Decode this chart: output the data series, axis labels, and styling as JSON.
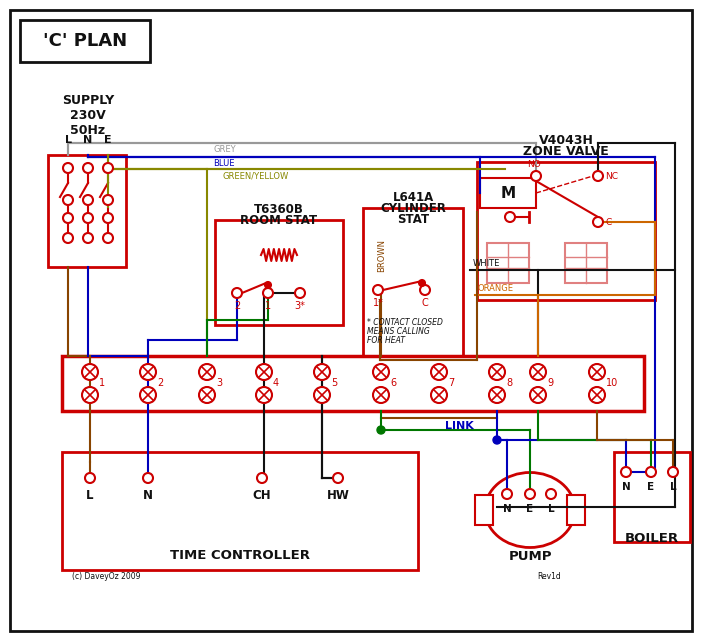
{
  "title": "'C' PLAN",
  "bg": "#ffffff",
  "RED": "#cc0000",
  "PRED": "#e08080",
  "BLUE": "#0000bb",
  "GREEN": "#007700",
  "GREY": "#999999",
  "BROWN": "#884400",
  "ORANGE": "#cc6600",
  "BLACK": "#111111",
  "GY": "#888800",
  "zone_valve": [
    "V4043H",
    "ZONE VALVE"
  ],
  "room_stat": [
    "T6360B",
    "ROOM STAT"
  ],
  "cyl_stat": [
    "L641A",
    "CYLINDER",
    "STAT"
  ],
  "terminals": [
    "1",
    "2",
    "3",
    "4",
    "5",
    "6",
    "7",
    "8",
    "9",
    "10"
  ],
  "tc_labels": [
    "L",
    "N",
    "CH",
    "HW"
  ],
  "tc_title": "TIME CONTROLLER",
  "pump_labels": [
    "N",
    "E",
    "L"
  ],
  "pump_title": "PUMP",
  "boiler_labels": [
    "N",
    "E",
    "L"
  ],
  "boiler_title": "BOILER",
  "link_label": "LINK",
  "wire_labels": {
    "grey": "GREY",
    "blue": "BLUE",
    "gy": "GREEN/YELLOW",
    "brown": "BROWN",
    "white": "WHITE",
    "orange": "ORANGE"
  },
  "contact_note": [
    "* CONTACT CLOSED",
    "MEANS CALLING",
    "FOR HEAT"
  ],
  "copyright": "(c) DaveyOz 2009",
  "rev": "Rev1d",
  "supply_lines": [
    "SUPPLY",
    "230V",
    "50Hz"
  ],
  "lne": [
    "L",
    "N",
    "E"
  ],
  "no_nc_c": [
    "NO",
    "NC",
    "C"
  ],
  "m_label": "M"
}
